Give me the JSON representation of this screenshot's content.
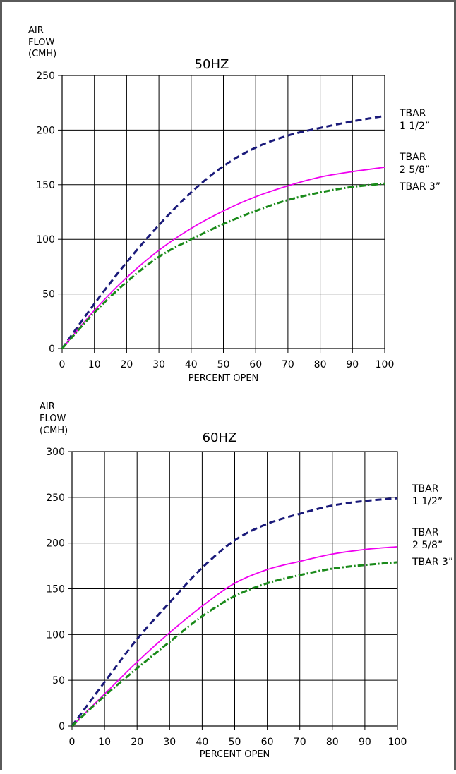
{
  "chart_data": [
    {
      "type": "line",
      "title": "50HZ",
      "ylabel_lines": [
        "AIR",
        "FLOW",
        "(CMH)"
      ],
      "xlabel": "PERCENT OPEN",
      "xlim": [
        0,
        100
      ],
      "ylim": [
        0,
        250
      ],
      "xticks": [
        0,
        10,
        20,
        30,
        40,
        50,
        60,
        70,
        80,
        90,
        100
      ],
      "yticks": [
        0,
        50,
        100,
        150,
        200,
        250
      ],
      "grid": true,
      "series": [
        {
          "name_lines": [
            "TBAR",
            "1 1/2”"
          ],
          "color": "#1a1a7a",
          "style": "dashed",
          "x": [
            0,
            10,
            20,
            30,
            40,
            50,
            60,
            70,
            80,
            90,
            100
          ],
          "y": [
            0,
            41,
            79,
            113,
            143,
            167,
            184,
            195,
            202,
            208,
            213
          ]
        },
        {
          "name_lines": [
            "TBAR",
            "2 5/8”"
          ],
          "color": "#f000f0",
          "style": "solid",
          "x": [
            0,
            10,
            20,
            30,
            40,
            50,
            60,
            70,
            80,
            90,
            100
          ],
          "y": [
            0,
            35,
            65,
            90,
            110,
            126,
            139,
            149,
            157,
            162,
            166
          ]
        },
        {
          "name_lines": [
            "TBAR 3”"
          ],
          "color": "#1a8a1a",
          "style": "dashdot",
          "x": [
            0,
            10,
            20,
            30,
            40,
            50,
            60,
            70,
            80,
            90,
            100
          ],
          "y": [
            0,
            33,
            61,
            84,
            100,
            114,
            126,
            136,
            143,
            148,
            151
          ]
        }
      ]
    },
    {
      "type": "line",
      "title": "60HZ",
      "ylabel_lines": [
        "AIR",
        "FLOW",
        "(CMH)"
      ],
      "xlabel": "PERCENT OPEN",
      "xlim": [
        0,
        100
      ],
      "ylim": [
        0,
        300
      ],
      "xticks": [
        0,
        10,
        20,
        30,
        40,
        50,
        60,
        70,
        80,
        90,
        100
      ],
      "yticks": [
        0,
        50,
        100,
        150,
        200,
        250,
        300
      ],
      "grid": true,
      "series": [
        {
          "name_lines": [
            "TBAR",
            "1 1/2”"
          ],
          "color": "#1a1a7a",
          "style": "dashed",
          "x": [
            0,
            10,
            20,
            30,
            40,
            50,
            60,
            70,
            80,
            90,
            100
          ],
          "y": [
            0,
            48,
            95,
            135,
            173,
            203,
            221,
            232,
            241,
            246,
            249
          ]
        },
        {
          "name_lines": [
            "TBAR",
            "2 5/8”"
          ],
          "color": "#f000f0",
          "style": "solid",
          "x": [
            0,
            10,
            20,
            30,
            40,
            50,
            60,
            70,
            80,
            90,
            100
          ],
          "y": [
            0,
            35,
            70,
            102,
            131,
            156,
            171,
            180,
            188,
            193,
            196
          ]
        },
        {
          "name_lines": [
            "TBAR 3”"
          ],
          "color": "#1a8a1a",
          "style": "dashdot",
          "x": [
            0,
            10,
            20,
            30,
            40,
            50,
            60,
            70,
            80,
            90,
            100
          ],
          "y": [
            0,
            33,
            63,
            92,
            120,
            142,
            156,
            165,
            172,
            176,
            179
          ]
        }
      ]
    }
  ]
}
